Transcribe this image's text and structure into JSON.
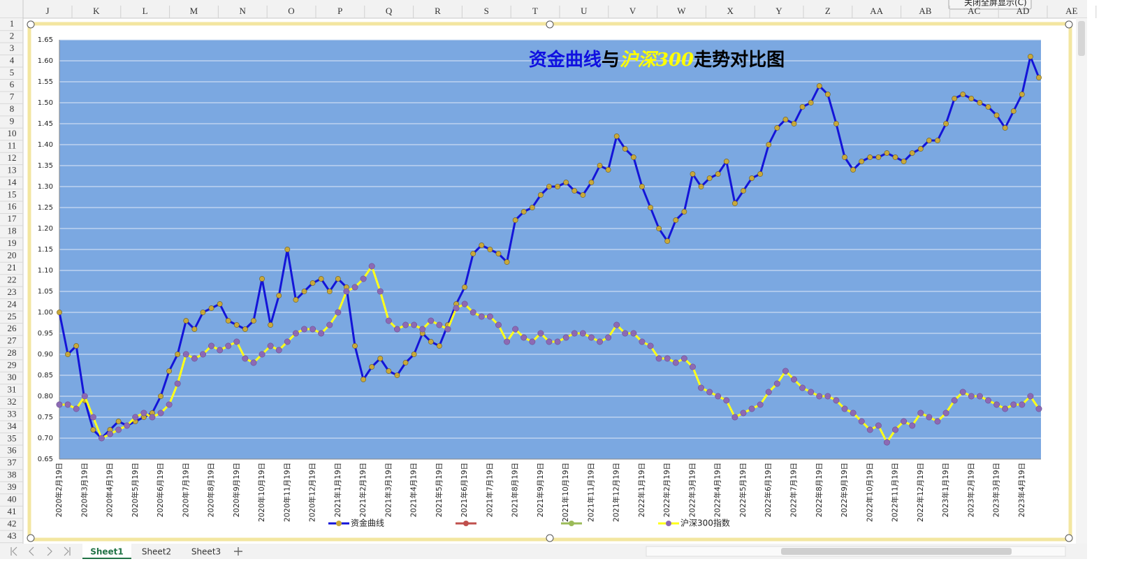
{
  "ui": {
    "columns": [
      "J",
      "K",
      "L",
      "M",
      "N",
      "O",
      "P",
      "Q",
      "R",
      "S",
      "T",
      "U",
      "V",
      "W",
      "X",
      "Y",
      "Z",
      "AA",
      "AB",
      "AC",
      "AD",
      "AE"
    ],
    "rows": [
      1,
      2,
      3,
      4,
      5,
      6,
      7,
      8,
      9,
      10,
      11,
      12,
      13,
      14,
      15,
      16,
      17,
      18,
      19,
      20,
      21,
      22,
      23,
      24,
      25,
      26,
      27,
      28,
      29,
      30,
      31,
      32,
      33,
      34,
      35,
      36,
      37,
      38,
      39,
      40,
      41,
      42,
      43
    ],
    "sheets": [
      "Sheet1",
      "Sheet2",
      "Sheet3"
    ],
    "button": "关闭全屏显示(C)"
  },
  "chart_data": {
    "type": "line",
    "title": [
      "资金曲线",
      "与",
      "沪深300",
      "走势对比图"
    ],
    "title_colors": [
      "#1010e0",
      "#000000",
      "#ffff00",
      "#000000"
    ],
    "background": "#7ba8e1",
    "grid": true,
    "ylim": [
      0.65,
      1.65
    ],
    "yticks": [
      0.65,
      {
        "value": 0.7,
        "label": "0.70"
      },
      0.75,
      {
        "value": 0.8,
        "label": "0.80"
      },
      0.85,
      {
        "value": 0.9,
        "label": "0.90"
      },
      0.95,
      {
        "value": 1,
        "label": "1.00"
      },
      1.05,
      {
        "value": 1.1,
        "label": "1.10"
      },
      1.15,
      {
        "value": 1.2,
        "label": "1.20"
      },
      1.25,
      {
        "value": 1.3,
        "label": "1.30"
      },
      1.35,
      {
        "value": 1.4,
        "label": "1.40"
      },
      1.45,
      {
        "value": 1.5,
        "label": "1.50"
      },
      1.55,
      {
        "value": 1.6,
        "label": "1.60"
      },
      1.65
    ],
    "categories": [
      "2020年2月19日",
      null,
      null,
      "2020年3月19日",
      null,
      null,
      "2020年4月19日",
      null,
      null,
      "2020年5月19日",
      null,
      null,
      "2020年6月19日",
      null,
      null,
      "2020年7月19日",
      null,
      null,
      "2020年8月19日",
      null,
      null,
      "2020年9月19日",
      null,
      null,
      "2020年10月19日",
      null,
      null,
      "2020年11月19日",
      null,
      null,
      "2020年12月19日",
      null,
      null,
      "2021年1月19日",
      null,
      null,
      "2021年2月19日",
      null,
      null,
      "2021年3月19日",
      null,
      null,
      "2021年4月19日",
      null,
      null,
      "2021年5月19日",
      null,
      null,
      "2021年6月19日",
      null,
      null,
      "2021年7月19日",
      null,
      null,
      "2021年8月19日",
      null,
      null,
      "2021年9月19日",
      null,
      null,
      "2021年10月19日",
      null,
      null,
      "2021年11月19日",
      null,
      null,
      "2021年12月19日",
      null,
      null,
      "2022年1月19日",
      null,
      null,
      "2022年2月19日",
      null,
      null,
      "2022年3月19日",
      null,
      null,
      "2022年4月19日",
      null,
      null,
      "2022年5月19日",
      null,
      null,
      "2022年6月19日",
      null,
      null,
      "2022年7月19日",
      null,
      null,
      "2022年8月19日",
      null,
      null,
      "2022年9月19日",
      null,
      null,
      "2022年10月19日",
      null,
      null,
      "2022年11月19日",
      null,
      null,
      "2022年12月19日",
      null,
      null,
      "2023年1月19日",
      null,
      null,
      "2023年2月19日",
      null,
      null,
      "2023年3月19日",
      null,
      null,
      "2023年4月19日",
      null,
      null
    ],
    "series": [
      {
        "name": "资金曲线",
        "color": "#1414d8",
        "marker_color": "#c9a93a",
        "values": [
          1.0,
          0.9,
          0.92,
          0.79,
          0.72,
          0.7,
          0.72,
          0.74,
          0.73,
          0.74,
          0.75,
          0.76,
          0.8,
          0.86,
          0.9,
          0.98,
          0.96,
          1.0,
          1.01,
          1.02,
          0.98,
          0.97,
          0.96,
          0.98,
          1.08,
          0.97,
          1.04,
          1.15,
          1.03,
          1.05,
          1.07,
          1.08,
          1.05,
          1.08,
          1.06,
          0.92,
          0.84,
          0.87,
          0.89,
          0.86,
          0.85,
          0.88,
          0.9,
          0.95,
          0.93,
          0.92,
          0.97,
          1.02,
          1.06,
          1.14,
          1.16,
          1.15,
          1.14,
          1.12,
          1.22,
          1.24,
          1.25,
          1.28,
          1.3,
          1.3,
          1.31,
          1.29,
          1.28,
          1.31,
          1.35,
          1.34,
          1.42,
          1.39,
          1.37,
          1.3,
          1.25,
          1.2,
          1.17,
          1.22,
          1.24,
          1.33,
          1.3,
          1.32,
          1.33,
          1.36,
          1.26,
          1.29,
          1.32,
          1.33,
          1.4,
          1.44,
          1.46,
          1.45,
          1.49,
          1.5,
          1.54,
          1.52,
          1.45,
          1.37,
          1.34,
          1.36,
          1.37,
          1.37,
          1.38,
          1.37,
          1.36,
          1.38,
          1.39,
          1.41,
          1.41,
          1.45,
          1.51,
          1.52,
          1.51,
          1.5,
          1.49,
          1.47,
          1.44,
          1.48,
          1.52,
          1.61,
          1.56
        ]
      },
      {
        "name": "沪深300指数",
        "color": "#ffff1a",
        "marker_color": "#8c6ab4",
        "values": [
          0.78,
          0.78,
          0.77,
          0.8,
          0.75,
          0.7,
          0.71,
          0.72,
          0.73,
          0.75,
          0.76,
          0.75,
          0.76,
          0.78,
          0.83,
          0.9,
          0.89,
          0.9,
          0.92,
          0.91,
          0.92,
          0.93,
          0.89,
          0.88,
          0.9,
          0.92,
          0.91,
          0.93,
          0.95,
          0.96,
          0.96,
          0.95,
          0.97,
          1.0,
          1.05,
          1.06,
          1.08,
          1.11,
          1.05,
          0.98,
          0.96,
          0.97,
          0.97,
          0.96,
          0.98,
          0.97,
          0.96,
          1.01,
          1.02,
          1.0,
          0.99,
          0.99,
          0.97,
          0.93,
          0.96,
          0.94,
          0.93,
          0.95,
          0.93,
          0.93,
          0.94,
          0.95,
          0.95,
          0.94,
          0.93,
          0.94,
          0.97,
          0.95,
          0.95,
          0.93,
          0.92,
          0.89,
          0.89,
          0.88,
          0.89,
          0.87,
          0.82,
          0.81,
          0.8,
          0.79,
          0.75,
          0.76,
          0.77,
          0.78,
          0.81,
          0.83,
          0.86,
          0.84,
          0.82,
          0.81,
          0.8,
          0.8,
          0.79,
          0.77,
          0.76,
          0.74,
          0.72,
          0.73,
          0.69,
          0.72,
          0.74,
          0.73,
          0.76,
          0.75,
          0.74,
          0.76,
          0.79,
          0.81,
          0.8,
          0.8,
          0.79,
          0.78,
          0.77,
          0.78,
          0.78,
          0.8,
          0.77
        ]
      }
    ]
  }
}
